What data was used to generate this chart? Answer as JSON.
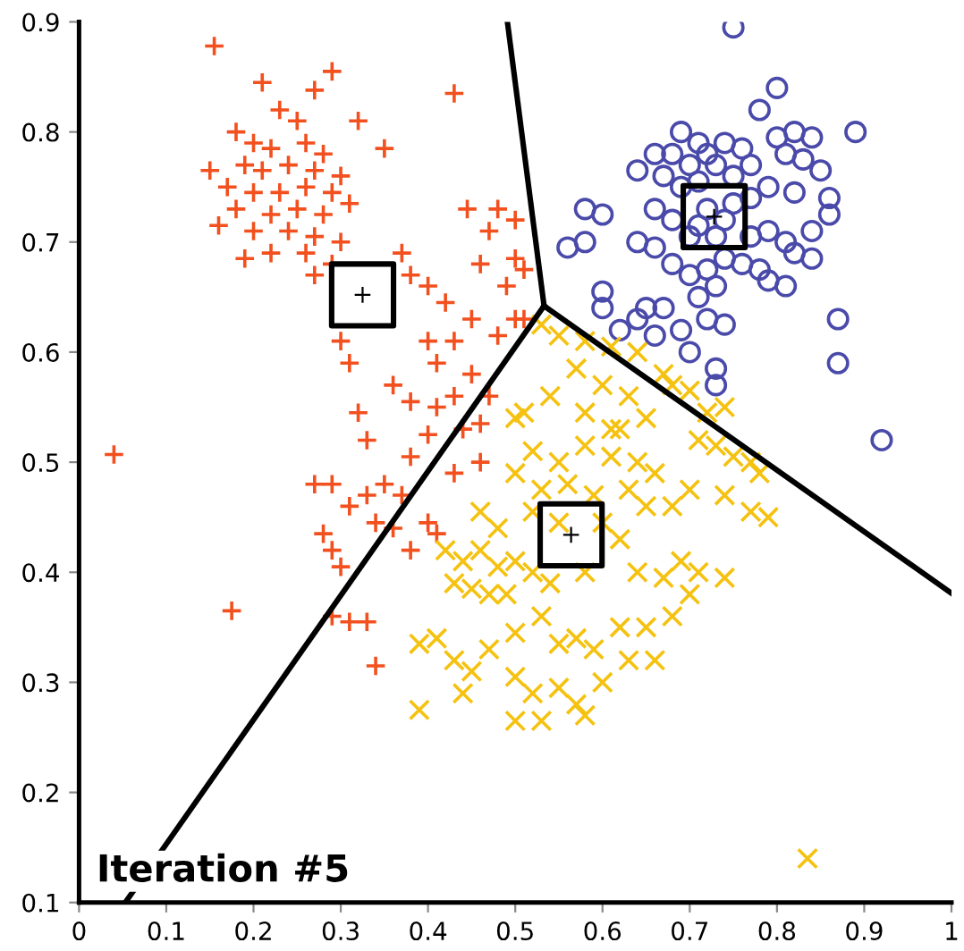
{
  "chart_data": {
    "type": "scatter",
    "xlim": [
      0,
      1
    ],
    "ylim": [
      0.1,
      0.9
    ],
    "xticks": [
      0,
      0.1,
      0.2,
      0.3,
      0.4,
      0.5,
      0.6,
      0.7,
      0.8,
      0.9,
      1
    ],
    "yticks": [
      0.1,
      0.2,
      0.3,
      0.4,
      0.5,
      0.6,
      0.7,
      0.8,
      0.9
    ],
    "grid": false,
    "legend": false,
    "annotations": [
      "Iteration #5"
    ],
    "series": [
      {
        "marker": "plus",
        "color": "#f2501e",
        "x": [
          0.155,
          0.21,
          0.29,
          0.27,
          0.43,
          0.23,
          0.25,
          0.32,
          0.18,
          0.2,
          0.22,
          0.26,
          0.28,
          0.19,
          0.21,
          0.24,
          0.27,
          0.3,
          0.15,
          0.35,
          0.17,
          0.2,
          0.23,
          0.26,
          0.29,
          0.18,
          0.22,
          0.25,
          0.28,
          0.31,
          0.16,
          0.2,
          0.24,
          0.27,
          0.3,
          0.22,
          0.26,
          0.19,
          0.27,
          0.29,
          0.37,
          0.38,
          0.4,
          0.42,
          0.445,
          0.48,
          0.47,
          0.5,
          0.46,
          0.5,
          0.49,
          0.51,
          0.45,
          0.5,
          0.51,
          0.48,
          0.43,
          0.3,
          0.31,
          0.4,
          0.41,
          0.36,
          0.38,
          0.45,
          0.47,
          0.43,
          0.44,
          0.4,
          0.32,
          0.33,
          0.41,
          0.46,
          0.27,
          0.29,
          0.33,
          0.35,
          0.37,
          0.31,
          0.34,
          0.36,
          0.4,
          0.41,
          0.38,
          0.28,
          0.29,
          0.3,
          0.29,
          0.31,
          0.33,
          0.34,
          0.04,
          0.175,
          0.38,
          0.43,
          0.46
        ],
        "values": [
          0.878,
          0.845,
          0.855,
          0.838,
          0.835,
          0.82,
          0.81,
          0.81,
          0.8,
          0.79,
          0.785,
          0.79,
          0.78,
          0.77,
          0.765,
          0.77,
          0.765,
          0.76,
          0.765,
          0.785,
          0.75,
          0.745,
          0.745,
          0.75,
          0.745,
          0.73,
          0.725,
          0.73,
          0.725,
          0.735,
          0.715,
          0.71,
          0.71,
          0.705,
          0.7,
          0.69,
          0.69,
          0.685,
          0.67,
          0.68,
          0.69,
          0.67,
          0.66,
          0.645,
          0.73,
          0.73,
          0.71,
          0.72,
          0.68,
          0.685,
          0.66,
          0.675,
          0.63,
          0.63,
          0.63,
          0.615,
          0.61,
          0.61,
          0.59,
          0.61,
          0.59,
          0.57,
          0.555,
          0.58,
          0.56,
          0.56,
          0.53,
          0.525,
          0.545,
          0.52,
          0.55,
          0.535,
          0.48,
          0.48,
          0.47,
          0.48,
          0.47,
          0.46,
          0.445,
          0.44,
          0.445,
          0.435,
          0.42,
          0.435,
          0.42,
          0.405,
          0.36,
          0.355,
          0.355,
          0.315,
          0.507,
          0.365,
          0.505,
          0.49,
          0.5
        ]
      },
      {
        "marker": "circle",
        "color": "#4a4aaa",
        "x": [
          0.75,
          0.78,
          0.8,
          0.82,
          0.84,
          0.89,
          0.69,
          0.71,
          0.72,
          0.74,
          0.76,
          0.8,
          0.81,
          0.66,
          0.68,
          0.7,
          0.73,
          0.77,
          0.83,
          0.85,
          0.64,
          0.67,
          0.69,
          0.71,
          0.75,
          0.79,
          0.82,
          0.86,
          0.86,
          0.84,
          0.81,
          0.79,
          0.77,
          0.72,
          0.74,
          0.71,
          0.73,
          0.75,
          0.77,
          0.66,
          0.68,
          0.7,
          0.58,
          0.6,
          0.56,
          0.58,
          0.64,
          0.66,
          0.68,
          0.7,
          0.72,
          0.74,
          0.76,
          0.78,
          0.82,
          0.84,
          0.79,
          0.81,
          0.73,
          0.71,
          0.65,
          0.67,
          0.6,
          0.6,
          0.62,
          0.64,
          0.66,
          0.69,
          0.72,
          0.74,
          0.7,
          0.73,
          0.73,
          0.87,
          0.87,
          0.92
        ],
        "values": [
          0.895,
          0.82,
          0.84,
          0.8,
          0.795,
          0.8,
          0.8,
          0.79,
          0.78,
          0.79,
          0.785,
          0.795,
          0.78,
          0.78,
          0.78,
          0.77,
          0.77,
          0.77,
          0.775,
          0.765,
          0.765,
          0.76,
          0.75,
          0.755,
          0.76,
          0.75,
          0.745,
          0.74,
          0.725,
          0.71,
          0.7,
          0.71,
          0.705,
          0.73,
          0.72,
          0.715,
          0.705,
          0.735,
          0.74,
          0.73,
          0.72,
          0.705,
          0.73,
          0.725,
          0.695,
          0.7,
          0.7,
          0.695,
          0.68,
          0.67,
          0.675,
          0.685,
          0.68,
          0.675,
          0.69,
          0.685,
          0.665,
          0.66,
          0.66,
          0.65,
          0.64,
          0.64,
          0.655,
          0.64,
          0.62,
          0.63,
          0.615,
          0.62,
          0.63,
          0.625,
          0.6,
          0.585,
          0.57,
          0.63,
          0.59,
          0.52
        ]
      },
      {
        "marker": "cross",
        "color": "#f5c211",
        "x": [
          0.53,
          0.55,
          0.58,
          0.61,
          0.64,
          0.67,
          0.68,
          0.7,
          0.72,
          0.74,
          0.71,
          0.73,
          0.75,
          0.77,
          0.78,
          0.7,
          0.74,
          0.77,
          0.79,
          0.57,
          0.6,
          0.54,
          0.58,
          0.63,
          0.65,
          0.61,
          0.62,
          0.51,
          0.5,
          0.52,
          0.55,
          0.58,
          0.61,
          0.64,
          0.66,
          0.5,
          0.53,
          0.56,
          0.59,
          0.63,
          0.65,
          0.68,
          0.52,
          0.55,
          0.46,
          0.48,
          0.6,
          0.62,
          0.42,
          0.44,
          0.46,
          0.48,
          0.5,
          0.52,
          0.43,
          0.45,
          0.47,
          0.49,
          0.54,
          0.58,
          0.64,
          0.67,
          0.69,
          0.71,
          0.7,
          0.74,
          0.68,
          0.65,
          0.41,
          0.39,
          0.43,
          0.45,
          0.47,
          0.5,
          0.53,
          0.55,
          0.57,
          0.59,
          0.62,
          0.63,
          0.66,
          0.44,
          0.5,
          0.52,
          0.55,
          0.57,
          0.58,
          0.5,
          0.53,
          0.39,
          0.6,
          0.835
        ],
        "values": [
          0.625,
          0.615,
          0.61,
          0.605,
          0.6,
          0.58,
          0.57,
          0.565,
          0.545,
          0.55,
          0.52,
          0.515,
          0.505,
          0.5,
          0.49,
          0.475,
          0.47,
          0.455,
          0.45,
          0.585,
          0.57,
          0.56,
          0.545,
          0.56,
          0.54,
          0.53,
          0.53,
          0.545,
          0.54,
          0.51,
          0.5,
          0.515,
          0.505,
          0.5,
          0.49,
          0.49,
          0.475,
          0.48,
          0.47,
          0.475,
          0.46,
          0.46,
          0.455,
          0.445,
          0.455,
          0.44,
          0.445,
          0.43,
          0.42,
          0.41,
          0.42,
          0.405,
          0.41,
          0.4,
          0.39,
          0.385,
          0.38,
          0.38,
          0.39,
          0.4,
          0.4,
          0.395,
          0.41,
          0.4,
          0.38,
          0.395,
          0.36,
          0.35,
          0.34,
          0.335,
          0.32,
          0.31,
          0.33,
          0.345,
          0.36,
          0.335,
          0.34,
          0.33,
          0.35,
          0.32,
          0.32,
          0.29,
          0.305,
          0.29,
          0.295,
          0.28,
          0.27,
          0.265,
          0.265,
          0.275,
          0.3,
          0.14
        ]
      },
      {
        "marker": "square",
        "color": "#000000",
        "x": [
          0.325,
          0.728,
          0.564
        ],
        "values": [
          0.652,
          0.723,
          0.434
        ]
      },
      {
        "type": "line",
        "color": "#000000",
        "x": [
          0.053,
          0.533
        ],
        "values": [
          0.1,
          0.642
        ]
      },
      {
        "type": "line",
        "color": "#000000",
        "x": [
          0.533,
          0.491
        ],
        "values": [
          0.642,
          0.9
        ]
      },
      {
        "type": "line",
        "color": "#000000",
        "x": [
          0.533,
          1.0
        ],
        "values": [
          0.642,
          0.381
        ]
      }
    ]
  }
}
